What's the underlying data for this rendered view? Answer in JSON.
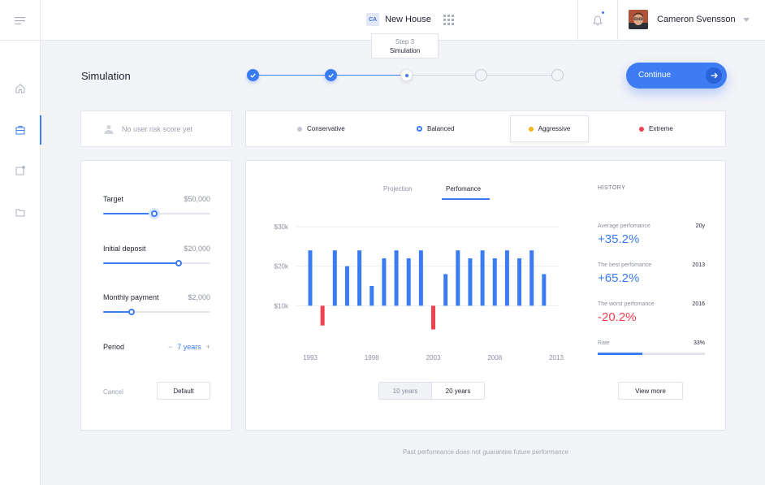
{
  "header": {
    "project_badge": "CA",
    "project_name": "New House",
    "user_name": "Cameron Svensson"
  },
  "page": {
    "title": "Simulation",
    "continue_label": "Continue"
  },
  "stepper": {
    "steps_total": 5,
    "current_step_index": 2,
    "tooltip_step": "Step 3",
    "tooltip_name": "Simulation"
  },
  "risk": {
    "label": "No user risk score yet"
  },
  "profiles": [
    {
      "label": "Conservative",
      "color": "#c3c6cf"
    },
    {
      "label": "Balanced",
      "color": "#3b7cf2"
    },
    {
      "label": "Aggressive",
      "color": "#f2b31b"
    },
    {
      "label": "Extreme",
      "color": "#f0414f"
    }
  ],
  "params": {
    "target": {
      "label": "Target",
      "value": "$50,000",
      "level": 0.5
    },
    "deposit": {
      "label": "Initial deposit",
      "value": "$20,000",
      "level": 0.71
    },
    "monthly": {
      "label": "Monthly payment",
      "value": "$2,000",
      "level": 0.27
    },
    "period": {
      "label": "Period",
      "value": "7 years",
      "minus": "−",
      "plus": "+"
    },
    "cancel_label": "Cancel",
    "default_label": "Default"
  },
  "tabs": {
    "projection": "Projection",
    "performance": "Perfomance"
  },
  "range": {
    "ten": "10 years",
    "twenty": "20 years"
  },
  "history": {
    "title": "HISTORY",
    "average": {
      "label": "Average perfomance",
      "period": "20y",
      "value": "+35.2%"
    },
    "best": {
      "label": "The best perfomance",
      "year": "2013",
      "value": "+65.2%"
    },
    "worst": {
      "label": "The worst perfomance",
      "year": "2016",
      "value": "-20.2%"
    },
    "rate": {
      "label": "Rate",
      "value": "33%",
      "fraction": 0.42
    },
    "view_more": "View more"
  },
  "colors": {
    "accent": "#3b7cf2",
    "positive": "#3b7cf2",
    "negative": "#f0414f"
  },
  "footer": {
    "note": "Past performance does not guarantee future performance"
  },
  "chart_data": {
    "type": "bar",
    "x": [
      1993,
      1994,
      1995,
      1996,
      1997,
      1998,
      1999,
      2000,
      2001,
      2002,
      2003,
      2004,
      2005,
      2006,
      2007,
      2008,
      2009,
      2010,
      2011,
      2012,
      2013
    ],
    "values": [
      14,
      -5,
      14,
      10,
      14,
      5,
      12,
      14,
      12,
      14,
      -6,
      8,
      14,
      12,
      14,
      12,
      14,
      12,
      14,
      8,
      0
    ],
    "x_tick_labels": [
      "1993",
      "1998",
      "2003",
      "2008",
      "2013"
    ],
    "y_tick_labels": [
      "$30k",
      "$20k",
      "$10k"
    ],
    "ylim": [
      -10,
      20
    ],
    "grid": true,
    "xlabel": "",
    "ylabel": ""
  }
}
